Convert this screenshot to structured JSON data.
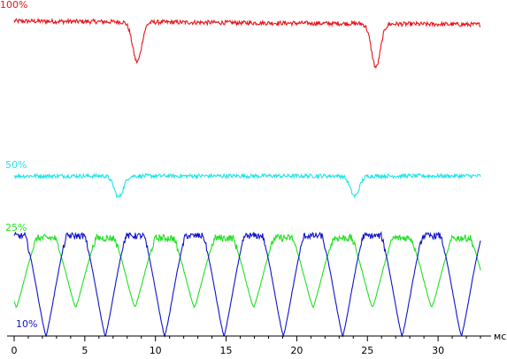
{
  "chart_data": {
    "type": "line",
    "xlabel": "мс",
    "xlim": [
      -0.5,
      33.5
    ],
    "x_ticks": [
      0,
      5,
      10,
      15,
      20,
      25,
      30
    ],
    "x_tick_labels": [
      "0",
      "5",
      "10",
      "15",
      "20",
      "25",
      "30"
    ],
    "grid": false,
    "series": [
      {
        "name": "100%",
        "color": "#e8141c",
        "base": 0.93,
        "tilt": -0.05,
        "noise": 0.03,
        "dips": [
          {
            "at": 8.7,
            "depth": 0.55,
            "width": 0.45
          },
          {
            "at": 25.6,
            "depth": 0.6,
            "width": 0.45
          }
        ],
        "band": [
          0.68,
          1.0
        ]
      },
      {
        "name": "50%",
        "color": "#22e4ea",
        "base": 0.93,
        "tilt": 0,
        "noise": 0.04,
        "dips": [
          {
            "at": 7.4,
            "depth": 0.42,
            "width": 0.45
          },
          {
            "at": 24.1,
            "depth": 0.4,
            "width": 0.45
          }
        ],
        "band": [
          0.41,
          0.52
        ]
      },
      {
        "name": "25%",
        "color": "#21e021",
        "period": 4.2,
        "phase": 1.2,
        "high": 0.92,
        "low": 0.05,
        "noise": 0.03,
        "band": [
          0.335,
          0.93
        ]
      },
      {
        "name": "10%",
        "color": "#0f14c8",
        "period": 4.2,
        "phase": 3.3,
        "high": 0.96,
        "low": 0.0,
        "noise": 0.02,
        "band": [
          0.335,
          0.93
        ]
      }
    ]
  }
}
